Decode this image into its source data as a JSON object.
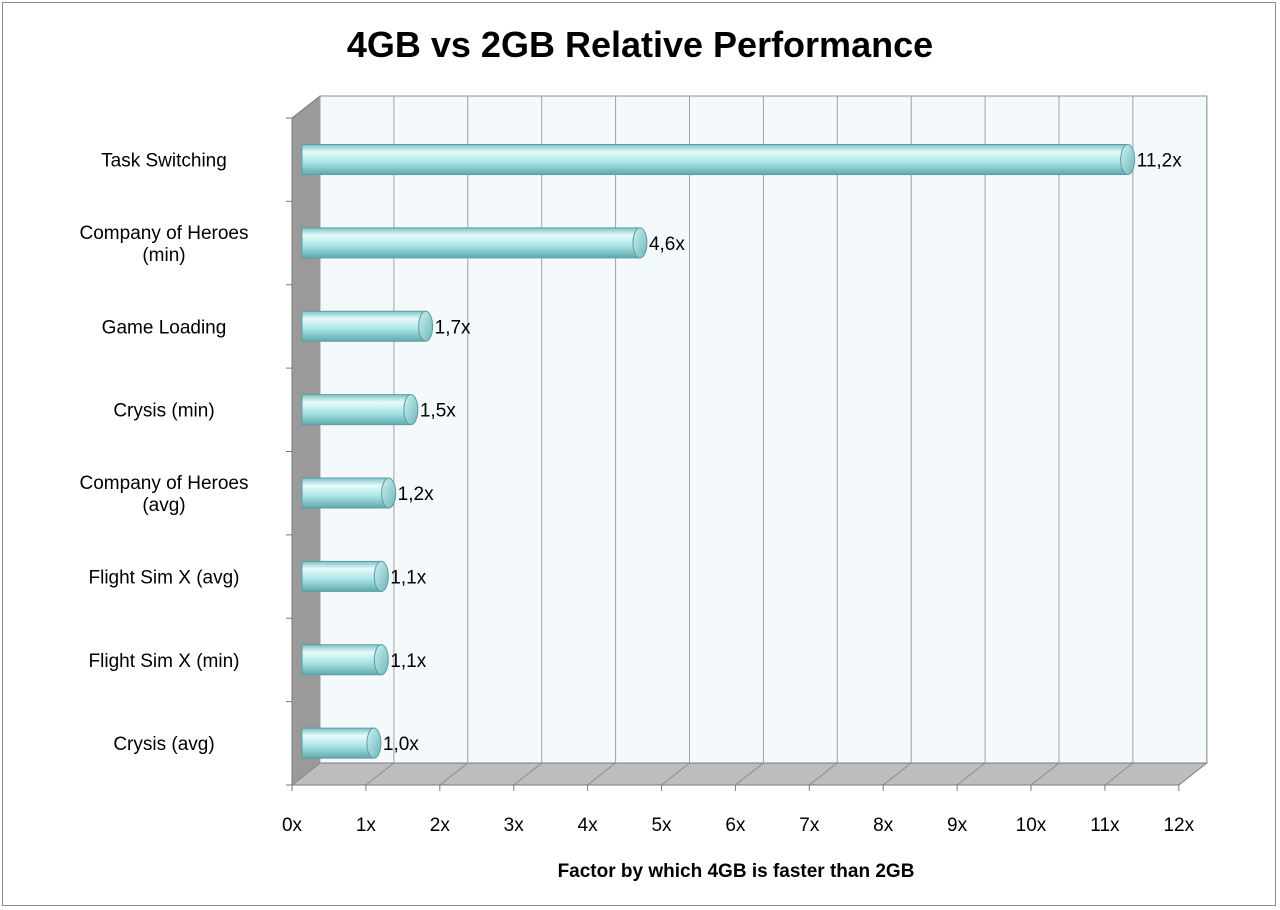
{
  "chart_data": {
    "type": "bar",
    "orientation": "horizontal",
    "title": "4GB vs 2GB Relative Performance",
    "xlabel": "Factor by which 4GB is faster than 2GB",
    "ylabel": "",
    "xlim": [
      0,
      12
    ],
    "x_ticks": [
      "0x",
      "1x",
      "2x",
      "3x",
      "4x",
      "5x",
      "6x",
      "7x",
      "8x",
      "9x",
      "10x",
      "11x",
      "12x"
    ],
    "grid": true,
    "legend": "none",
    "categories": [
      [
        "Task Switching"
      ],
      [
        "Company of Heroes",
        "(min)"
      ],
      [
        "Game Loading"
      ],
      [
        "Crysis (min)"
      ],
      [
        "Company of Heroes",
        "(avg)"
      ],
      [
        "Flight Sim X (avg)"
      ],
      [
        "Flight Sim X (min)"
      ],
      [
        "Crysis (avg)"
      ]
    ],
    "values": [
      11.2,
      4.6,
      1.7,
      1.5,
      1.2,
      1.1,
      1.1,
      1.0
    ],
    "value_labels": [
      "11,2x",
      "4,6x",
      "1,7x",
      "1,5x",
      "1,2x",
      "1,1x",
      "1,1x",
      "1,0x"
    ],
    "colors": {
      "bar": "#a8e4e6",
      "bar_highlight": "#e8fbfb",
      "bar_shadow": "#5fa9ad",
      "wall": "#f4f9fb",
      "floor": "#bdbdbd",
      "side_wall": "#9a9a9a"
    }
  }
}
